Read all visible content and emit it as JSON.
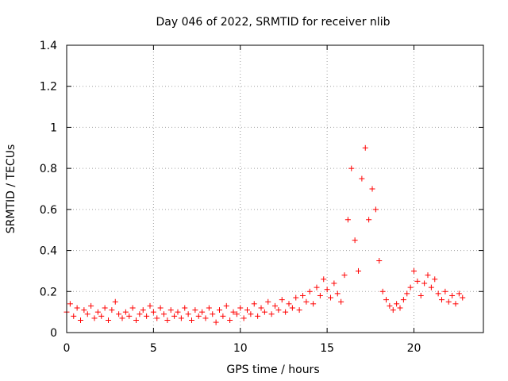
{
  "chart_data": {
    "type": "scatter",
    "title": "Day 046 of 2022, SRMTID for receiver nlib",
    "xlabel": "GPS time / hours",
    "ylabel": "SRMTID / TECUs",
    "xlim": [
      0,
      24
    ],
    "ylim": [
      0,
      1.4
    ],
    "xticks": [
      0,
      5,
      10,
      15,
      20
    ],
    "yticks": [
      0,
      0.2,
      0.4,
      0.6,
      0.8,
      1,
      1.2,
      1.4
    ],
    "xtick_labels": [
      "0",
      "5",
      "10",
      "15",
      "20"
    ],
    "ytick_labels": [
      "0",
      "0.2",
      "0.4",
      "0.6",
      "0.8",
      "1",
      "1.2",
      "1.4"
    ],
    "grid": true,
    "marker": "+",
    "color": "#ff0000",
    "series": [
      {
        "name": "SRMTID",
        "x_start": 0.0,
        "x_end": 22.8,
        "x_step": 0.05,
        "points": [
          [
            0.0,
            0.1
          ],
          [
            0.2,
            0.14
          ],
          [
            0.4,
            0.08
          ],
          [
            0.6,
            0.12
          ],
          [
            0.8,
            0.06
          ],
          [
            1.0,
            0.11
          ],
          [
            1.2,
            0.09
          ],
          [
            1.4,
            0.13
          ],
          [
            1.6,
            0.07
          ],
          [
            1.8,
            0.1
          ],
          [
            2.0,
            0.08
          ],
          [
            2.2,
            0.12
          ],
          [
            2.4,
            0.06
          ],
          [
            2.6,
            0.11
          ],
          [
            2.8,
            0.15
          ],
          [
            3.0,
            0.09
          ],
          [
            3.2,
            0.07
          ],
          [
            3.4,
            0.1
          ],
          [
            3.6,
            0.08
          ],
          [
            3.8,
            0.12
          ],
          [
            4.0,
            0.06
          ],
          [
            4.2,
            0.09
          ],
          [
            4.4,
            0.11
          ],
          [
            4.6,
            0.08
          ],
          [
            4.8,
            0.13
          ],
          [
            5.0,
            0.1
          ],
          [
            5.2,
            0.07
          ],
          [
            5.4,
            0.12
          ],
          [
            5.6,
            0.09
          ],
          [
            5.8,
            0.06
          ],
          [
            6.0,
            0.11
          ],
          [
            6.2,
            0.08
          ],
          [
            6.4,
            0.1
          ],
          [
            6.6,
            0.07
          ],
          [
            6.8,
            0.12
          ],
          [
            7.0,
            0.09
          ],
          [
            7.2,
            0.06
          ],
          [
            7.4,
            0.11
          ],
          [
            7.6,
            0.08
          ],
          [
            7.8,
            0.1
          ],
          [
            8.0,
            0.07
          ],
          [
            8.2,
            0.12
          ],
          [
            8.4,
            0.09
          ],
          [
            8.6,
            0.05
          ],
          [
            8.8,
            0.11
          ],
          [
            9.0,
            0.08
          ],
          [
            9.2,
            0.13
          ],
          [
            9.4,
            0.06
          ],
          [
            9.6,
            0.1
          ],
          [
            9.8,
            0.09
          ],
          [
            10.0,
            0.12
          ],
          [
            10.2,
            0.07
          ],
          [
            10.4,
            0.11
          ],
          [
            10.6,
            0.09
          ],
          [
            10.8,
            0.14
          ],
          [
            11.0,
            0.08
          ],
          [
            11.2,
            0.12
          ],
          [
            11.4,
            0.1
          ],
          [
            11.6,
            0.15
          ],
          [
            11.8,
            0.09
          ],
          [
            12.0,
            0.13
          ],
          [
            12.2,
            0.11
          ],
          [
            12.4,
            0.16
          ],
          [
            12.6,
            0.1
          ],
          [
            12.8,
            0.14
          ],
          [
            13.0,
            0.12
          ],
          [
            13.2,
            0.17
          ],
          [
            13.4,
            0.11
          ],
          [
            13.6,
            0.18
          ],
          [
            13.8,
            0.15
          ],
          [
            14.0,
            0.2
          ],
          [
            14.2,
            0.14
          ],
          [
            14.4,
            0.22
          ],
          [
            14.6,
            0.18
          ],
          [
            14.8,
            0.26
          ],
          [
            15.0,
            0.21
          ],
          [
            15.2,
            0.17
          ],
          [
            15.4,
            0.24
          ],
          [
            15.6,
            0.19
          ],
          [
            15.8,
            0.15
          ],
          [
            16.0,
            0.28
          ],
          [
            16.2,
            0.55
          ],
          [
            16.4,
            0.8
          ],
          [
            16.6,
            0.45
          ],
          [
            16.8,
            0.3
          ],
          [
            17.0,
            0.75
          ],
          [
            17.2,
            0.9
          ],
          [
            17.4,
            0.55
          ],
          [
            17.6,
            0.7
          ],
          [
            17.8,
            0.6
          ],
          [
            18.0,
            0.35
          ],
          [
            18.2,
            0.2
          ],
          [
            18.4,
            0.16
          ],
          [
            18.6,
            0.13
          ],
          [
            18.8,
            0.11
          ],
          [
            19.0,
            0.14
          ],
          [
            19.2,
            0.12
          ],
          [
            19.4,
            0.16
          ],
          [
            19.6,
            0.19
          ],
          [
            19.8,
            0.22
          ],
          [
            20.0,
            0.3
          ],
          [
            20.2,
            0.25
          ],
          [
            20.4,
            0.18
          ],
          [
            20.6,
            0.24
          ],
          [
            20.8,
            0.28
          ],
          [
            21.0,
            0.22
          ],
          [
            21.2,
            0.26
          ],
          [
            21.4,
            0.19
          ],
          [
            21.6,
            0.16
          ],
          [
            21.8,
            0.2
          ],
          [
            22.0,
            0.15
          ],
          [
            22.2,
            0.18
          ],
          [
            22.4,
            0.14
          ],
          [
            22.6,
            0.19
          ],
          [
            22.8,
            0.17
          ]
        ]
      }
    ]
  }
}
